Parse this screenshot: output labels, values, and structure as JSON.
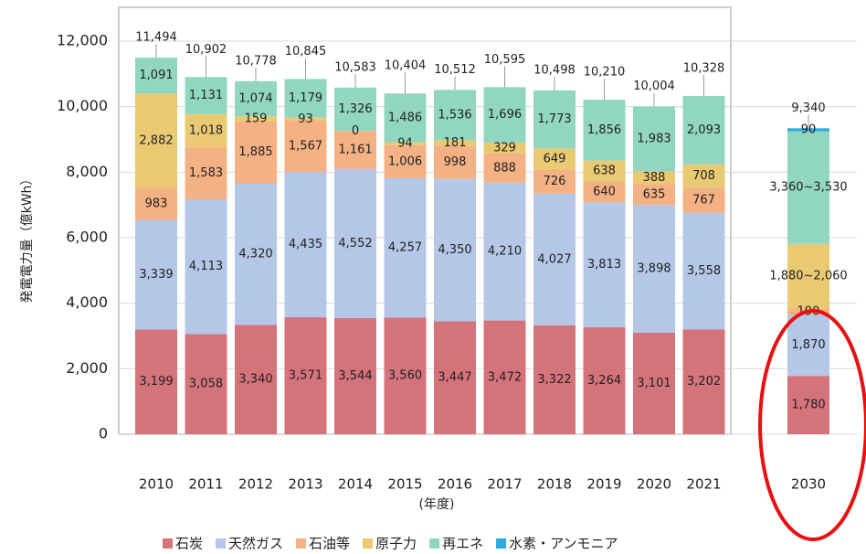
{
  "chart_data": {
    "type": "stacked_bar",
    "ylabel": "発電電力量（億kWh）",
    "xlabel": "(年度)",
    "categories": [
      "2010",
      "2011",
      "2012",
      "2013",
      "2014",
      "2015",
      "2016",
      "2017",
      "2018",
      "2019",
      "2020",
      "2021",
      "2030"
    ],
    "ylim": [
      0,
      12000
    ],
    "yticks": [
      0,
      {
        "value": 2000,
        "label": "2,000"
      },
      {
        "value": 4000,
        "label": "4,000"
      },
      {
        "value": 6000,
        "label": "6,000"
      },
      {
        "value": 8000,
        "label": "8,000"
      },
      {
        "value": 10000,
        "label": "10,000"
      },
      {
        "value": 12000,
        "label": "12,000"
      }
    ],
    "grid": true,
    "legend": "bottom",
    "series": [
      {
        "name": "石炭",
        "color": "#d5737b",
        "values": [
          3199,
          3058,
          3340,
          3571,
          3544,
          3560,
          3447,
          3472,
          3322,
          3264,
          3101,
          3202,
          1780
        ],
        "value_labels": [
          "3,199",
          "3,058",
          "3,340",
          "3,571",
          "3,544",
          "3,560",
          "3,447",
          "3,472",
          "3,322",
          "3,264",
          "3,101",
          "3,202",
          "1,780"
        ]
      },
      {
        "name": "天然ガス",
        "color": "#b4c7e7",
        "values": [
          3339,
          4113,
          4320,
          4435,
          4552,
          4257,
          4350,
          4210,
          4027,
          3813,
          3898,
          3558,
          1870
        ],
        "value_labels": [
          "3,339",
          "4,113",
          "4,320",
          "4,435",
          "4,552",
          "4,257",
          "4,350",
          "4,210",
          "4,027",
          "3,813",
          "3,898",
          "3,558",
          "1,870"
        ]
      },
      {
        "name": "石油等",
        "color": "#f4b183",
        "values": [
          983,
          1583,
          1885,
          1567,
          1161,
          1006,
          998,
          888,
          726,
          640,
          635,
          767,
          190
        ],
        "value_labels": [
          "983",
          "1,583",
          "1,885",
          "1,567",
          "1,161",
          "1,006",
          "998",
          "888",
          "726",
          "640",
          "635",
          "767",
          "190"
        ]
      },
      {
        "name": "原子力",
        "color": "#e9c971",
        "values": [
          2882,
          1018,
          159,
          93,
          0,
          94,
          181,
          329,
          649,
          638,
          388,
          708,
          1970
        ],
        "value_labels": [
          "2,882",
          "1,018",
          "159",
          "93",
          "0",
          "94",
          "181",
          "329",
          "649",
          "638",
          "388",
          "708",
          "1,880~2,060"
        ]
      },
      {
        "name": "再エネ",
        "color": "#91d6c0",
        "values": [
          1091,
          1131,
          1074,
          1179,
          1326,
          1486,
          1536,
          1696,
          1773,
          1856,
          1983,
          2093,
          3440
        ],
        "value_labels": [
          "1,091",
          "1,131",
          "1,074",
          "1,179",
          "1,326",
          "1,486",
          "1,536",
          "1,696",
          "1,773",
          "1,856",
          "1,983",
          "2,093",
          "3,360~3,530"
        ]
      },
      {
        "name": "水素・アンモニア",
        "color": "#2eaadc",
        "values": [
          null,
          null,
          null,
          null,
          null,
          null,
          null,
          null,
          null,
          null,
          null,
          null,
          90
        ],
        "value_labels": [
          null,
          null,
          null,
          null,
          null,
          null,
          null,
          null,
          null,
          null,
          null,
          null,
          "90"
        ]
      }
    ],
    "totals": {
      "values": [
        11494,
        10902,
        10778,
        10845,
        10583,
        10404,
        10512,
        10595,
        10498,
        10210,
        10004,
        10328,
        9340
      ],
      "value_labels": [
        "11,494",
        "10,902",
        "10,778",
        "10,845",
        "10,583",
        "10,404",
        "10,512",
        "10,595",
        "10,498",
        "10,210",
        "10,004",
        "10,328",
        "9,340"
      ]
    }
  }
}
